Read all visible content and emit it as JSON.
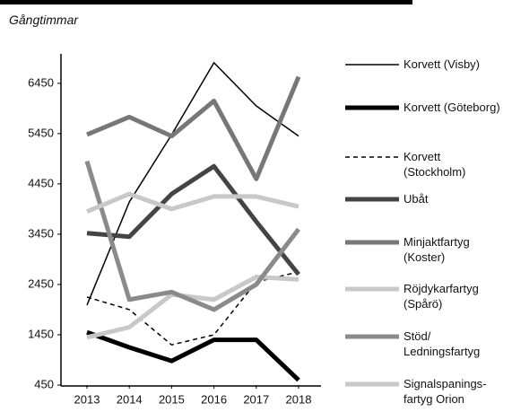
{
  "chart_data": {
    "type": "line",
    "subtitle": "Gångtimmar",
    "categories": [
      "2013",
      "2014",
      "2015",
      "2016",
      "2017",
      "2018"
    ],
    "ylim": [
      450,
      7000
    ],
    "yticks": [
      450,
      1450,
      2450,
      3450,
      4450,
      5450,
      6450
    ],
    "series": [
      {
        "name": "Korvett (Visby)",
        "color": "#000000",
        "width": 1.5,
        "values": [
          2040,
          4090,
          5430,
          6860,
          6000,
          5400
        ]
      },
      {
        "name": "Korvett (Göteborg)",
        "color": "#000000",
        "width": 5,
        "values": [
          1500,
          1200,
          930,
          1350,
          1350,
          550
        ]
      },
      {
        "name": "Korvett (Stockholm)",
        "color": "#000000",
        "width": 1.5,
        "dash": true,
        "values": [
          2200,
          1950,
          1250,
          1450,
          2500,
          2700
        ]
      },
      {
        "name": "Ubåt",
        "color": "#444444",
        "width": 5,
        "values": [
          3470,
          3400,
          4250,
          4800,
          3700,
          2650
        ]
      },
      {
        "name": "Minjaktfartyg (Koster)",
        "color": "#777777",
        "width": 5,
        "values": [
          5430,
          5780,
          5400,
          6100,
          4550,
          6580
        ]
      },
      {
        "name": "Röjdykarfartyg (Spårö)",
        "color": "#c8c8c8",
        "width": 5,
        "values": [
          1400,
          1600,
          2250,
          2150,
          2600,
          2550
        ]
      },
      {
        "name": "Stöd/ Ledningsfartyg",
        "color": "#8a8a8a",
        "width": 5,
        "values": [
          4900,
          2150,
          2300,
          1950,
          2450,
          3550
        ]
      },
      {
        "name": "Signalspanings­fartyg Orion",
        "color": "#c8c8c8",
        "width": 5,
        "values": [
          3900,
          4250,
          3950,
          4200,
          4200,
          4000
        ]
      }
    ]
  }
}
